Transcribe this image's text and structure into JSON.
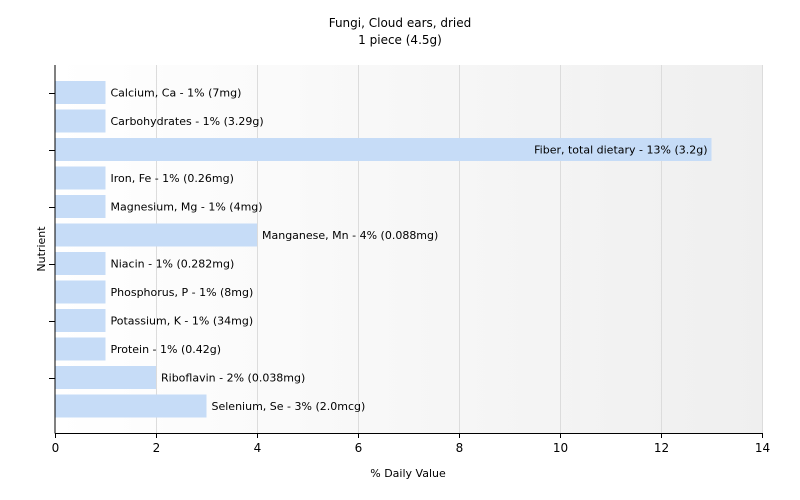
{
  "chart_data": {
    "type": "bar",
    "orientation": "horizontal",
    "title": "Fungi, Cloud ears, dried",
    "subtitle": "1 piece (4.5g)",
    "xlabel": "% Daily Value",
    "ylabel": "Nutrient",
    "xlim": [
      0,
      14
    ],
    "xticks": [
      0,
      2,
      4,
      6,
      8,
      10,
      12,
      14
    ],
    "grid": true,
    "bar_color": "#c6dcf7",
    "categories": [
      "Calcium, Ca",
      "Carbohydrates",
      "Fiber, total dietary",
      "Iron, Fe",
      "Magnesium, Mg",
      "Manganese, Mn",
      "Niacin",
      "Phosphorus, P",
      "Potassium, K",
      "Protein",
      "Riboflavin",
      "Selenium, Se"
    ],
    "values": [
      1,
      1,
      13,
      1,
      1,
      4,
      1,
      1,
      1,
      1,
      2,
      3
    ],
    "labels": [
      "Calcium, Ca - 1% (7mg)",
      "Carbohydrates - 1% (3.29g)",
      "Fiber, total dietary - 13% (3.2g)",
      "Iron, Fe - 1% (0.26mg)",
      "Magnesium, Mg - 1% (4mg)",
      "Manganese, Mn - 4% (0.088mg)",
      "Niacin - 1% (0.282mg)",
      "Phosphorus, P - 1% (8mg)",
      "Potassium, K - 1% (34mg)",
      "Protein - 1% (0.42g)",
      "Riboflavin - 2% (0.038mg)",
      "Selenium, Se - 3% (2.0mcg)"
    ]
  }
}
